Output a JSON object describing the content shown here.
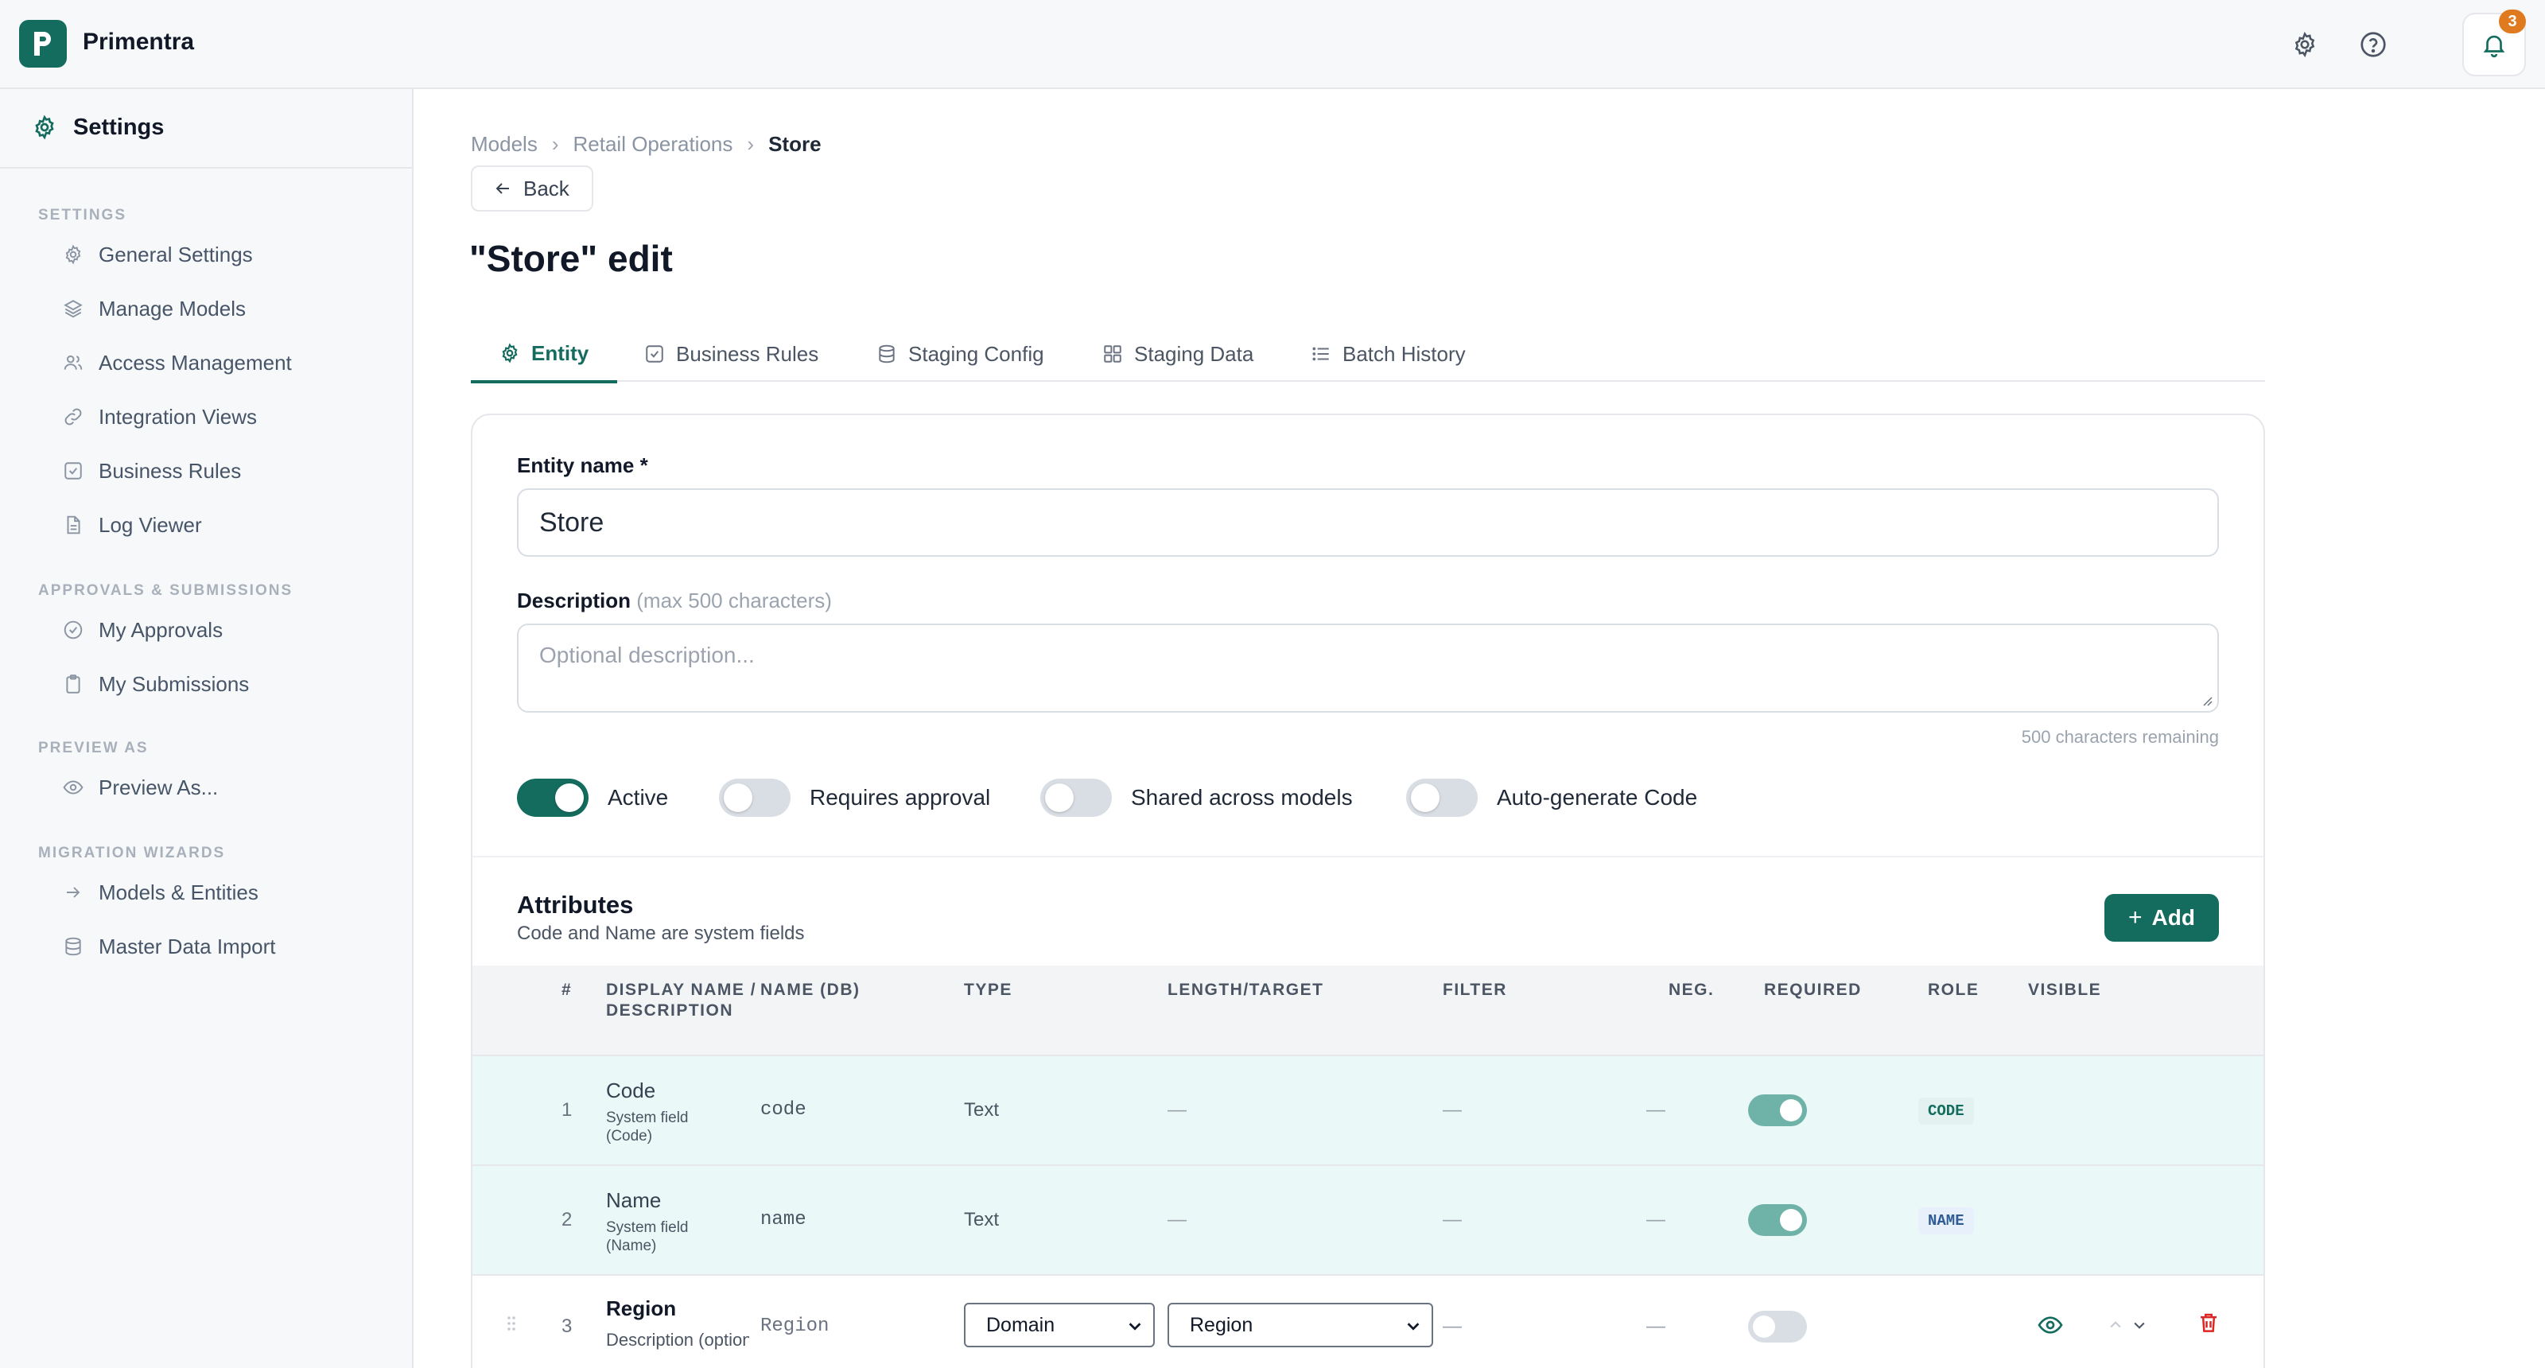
{
  "app": {
    "name": "Primentra",
    "notifications_count": "3"
  },
  "sidebar": {
    "header": "Settings",
    "sections": [
      {
        "title": "SETTINGS",
        "items": [
          {
            "label": "General Settings",
            "icon": "gear-icon"
          },
          {
            "label": "Manage Models",
            "icon": "layers-icon"
          },
          {
            "label": "Access Management",
            "icon": "users-icon"
          },
          {
            "label": "Integration Views",
            "icon": "link-icon"
          },
          {
            "label": "Business Rules",
            "icon": "check-square-icon"
          },
          {
            "label": "Log Viewer",
            "icon": "file-text-icon"
          }
        ]
      },
      {
        "title": "APPROVALS & SUBMISSIONS",
        "items": [
          {
            "label": "My Approvals",
            "icon": "check-circle-icon"
          },
          {
            "label": "My Submissions",
            "icon": "clipboard-icon"
          }
        ]
      },
      {
        "title": "PREVIEW AS",
        "items": [
          {
            "label": "Preview As...",
            "icon": "eye-icon"
          }
        ]
      },
      {
        "title": "MIGRATION WIZARDS",
        "items": [
          {
            "label": "Models & Entities",
            "icon": "arrow-right-icon"
          },
          {
            "label": "Master Data Import",
            "icon": "database-icon"
          }
        ]
      }
    ]
  },
  "breadcrumb": {
    "items": [
      "Models",
      "Retail Operations"
    ],
    "current": "Store"
  },
  "back_label": "Back",
  "page_title": "\"Store\" edit",
  "tabs": [
    {
      "label": "Entity",
      "icon": "gear-icon",
      "active": true
    },
    {
      "label": "Business Rules",
      "icon": "check-square-icon"
    },
    {
      "label": "Staging Config",
      "icon": "database-icon"
    },
    {
      "label": "Staging Data",
      "icon": "grid-icon"
    },
    {
      "label": "Batch History",
      "icon": "list-icon"
    }
  ],
  "form": {
    "entity_name_label": "Entity name *",
    "entity_name_value": "Store",
    "description_label": "Description",
    "description_hint": "(max 500 characters)",
    "description_placeholder": "Optional description...",
    "remaining": "500 characters remaining",
    "toggles": [
      {
        "label": "Active",
        "on": true
      },
      {
        "label": "Requires approval",
        "on": false
      },
      {
        "label": "Shared across models",
        "on": false
      },
      {
        "label": "Auto-generate Code",
        "on": false
      }
    ]
  },
  "attributes": {
    "title": "Attributes",
    "subtitle": "Code and Name are system fields",
    "add_label": "Add",
    "columns": {
      "num": "#",
      "display": "DISPLAY NAME / DESCRIPTION",
      "dbname": "NAME (DB)",
      "type": "TYPE",
      "length": "LENGTH/TARGET",
      "filter": "FILTER",
      "neg": "NEG.",
      "required": "REQUIRED",
      "role": "ROLE",
      "visible": "VISIBLE"
    },
    "rows": [
      {
        "num": "1",
        "display": "Code",
        "desc": "System field (Code)",
        "db": "code",
        "type": "Text",
        "length": "—",
        "filter": "—",
        "neg": "—",
        "required": true,
        "role": "CODE"
      },
      {
        "num": "2",
        "display": "Name",
        "desc": "System field (Name)",
        "db": "name",
        "type": "Text",
        "length": "—",
        "filter": "—",
        "neg": "—",
        "required": true,
        "role": "NAME"
      },
      {
        "num": "3",
        "display": "Region",
        "desc_placeholder": "Description (optional)",
        "db": "Region",
        "type_select": "Domain",
        "target_select": "Region",
        "filter": "—",
        "neg": "—",
        "required": false
      }
    ]
  },
  "colors": {
    "brand": "#146c5e",
    "badge": "#e07a1f",
    "danger": "#dc2626"
  }
}
